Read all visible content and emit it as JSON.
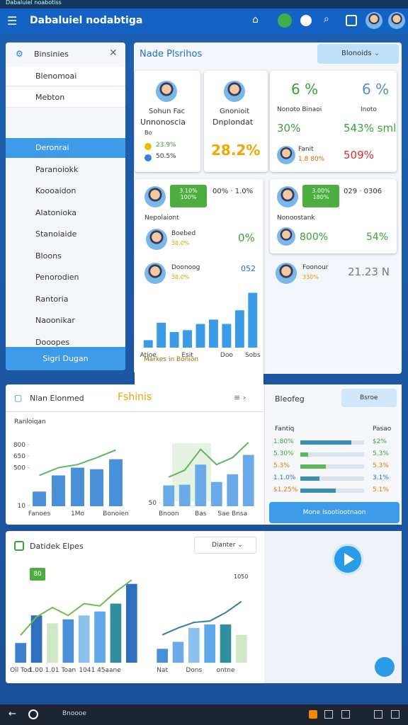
{
  "window_title": "Dabaluiel noabotiss",
  "header": {
    "title": "Dabaluiel nodabtiga"
  },
  "sidebar": {
    "title": "Binsinies",
    "items": [
      "Blenomoai",
      "Mebton",
      "Deronrai",
      "Paranoiokk",
      "Koooaidon",
      "Alatonioka",
      "Stanoiaide",
      "Bloons",
      "Penorodien",
      "Rantoria",
      "Naoonikar",
      "Dooopes"
    ],
    "button": "Sigri Dugan"
  },
  "overview": {
    "title": "Nade Plsrihos",
    "dropdown": "Blonoids",
    "card1": {
      "name": "Sohun Fac",
      "sub": "Unnonoscia",
      "note": "Bo",
      "stat1": "23.9%",
      "stat2": "50.5%"
    },
    "card2": {
      "name": "Gnonioit",
      "sub": "Dnplondat",
      "value": "28.2%"
    },
    "card3": {
      "a": "6 %",
      "b": "6 %",
      "a_label": "Nonoto Binaoi",
      "b_label": "Inoto",
      "c": "30%",
      "d": "543% sml",
      "person": "Fanit",
      "person_value": "1.8 80%",
      "e": "509%"
    },
    "card4": {
      "badge1": "3.10%",
      "badge2": "100%",
      "stat": "00% · 1.0%",
      "name": "Nepolaiont",
      "person": "Boebed",
      "person_value": "38.0%",
      "value": "0%"
    },
    "card5": {
      "badge1": "3.00%",
      "badge2": "180%",
      "stat": "029 · 0306",
      "name": "Nonoostank",
      "value": "800%",
      "value2": "54%"
    },
    "card6": {
      "person": "Doonoog",
      "person_value": "38.0%",
      "stat": "052"
    },
    "card7": {
      "person": "Foonour",
      "person_value": "330%",
      "stat": "21.23 N"
    },
    "footer": "Markes in Bonion"
  },
  "middle": {
    "title": "Nlan Elonmed",
    "tag": "Fshinis",
    "chart_label": "Ranloiqan",
    "side_title": "Bleofeg",
    "side_button": "Bsroe",
    "col1": "Fantiq",
    "col2": "Pasao",
    "rows": [
      {
        "label": "1.80%",
        "value": 80,
        "right": "$2%"
      },
      {
        "label": "5.30%",
        "value": 12,
        "right": "5.3%"
      },
      {
        "label": "5.3%",
        "value": 40,
        "right": "5.3%"
      },
      {
        "label": "1.1.0%",
        "value": 30,
        "right": "3.1%"
      },
      {
        "label": "$1.25%",
        "value": 55,
        "right": "5.1%"
      }
    ],
    "action": "Mone Isootiootnaon"
  },
  "bottom": {
    "title": "Datidek Elpes",
    "dropdown": "Dianter",
    "badge": "80",
    "annotation": "1050"
  },
  "taskbar": {
    "label": "Bnoooe"
  },
  "chart_data": [
    {
      "type": "bar",
      "categories": [
        "Atioe",
        null,
        null,
        "Esit",
        null,
        null,
        "Doo",
        null,
        "Sobs"
      ],
      "values": [
        12,
        40,
        25,
        28,
        38,
        45,
        38,
        60,
        88
      ],
      "color": "#3b9be6",
      "ylim": [
        0,
        100
      ]
    },
    {
      "type": "bar",
      "categories": [
        "Fanoes",
        null,
        "1Mo",
        null,
        "Bonoien"
      ],
      "values": [
        190,
        400,
        500,
        480,
        610
      ],
      "line_values": [
        400,
        500,
        540,
        630,
        730
      ],
      "color": "#4a90d9",
      "line_color": "#5cb85c",
      "ylim": [
        0,
        900
      ],
      "yticks": [
        800,
        650,
        500,
        10
      ]
    },
    {
      "type": "bar",
      "categories": [
        "Bnoon",
        null,
        "Bas",
        null,
        "Sae Bnsa",
        null
      ],
      "values": [
        300,
        310,
        600,
        350,
        460,
        740
      ],
      "line_values": [
        420,
        520,
        820,
        600,
        700,
        920
      ],
      "color": "#6aaae8",
      "line_color": "#5cb85c",
      "ylim": [
        0,
        1000
      ],
      "yticks": [
        50
      ]
    },
    {
      "type": "bar",
      "categories": [
        "Oil Tod",
        null,
        "1.00 1.01 Toan",
        null,
        null,
        "1041 45aane",
        null,
        null
      ],
      "values": [
        25,
        60,
        50,
        55,
        60,
        65,
        75,
        100
      ],
      "line_values": [
        35,
        58,
        70,
        60,
        75,
        72,
        90,
        105
      ],
      "colors": [
        "#3d7fd0",
        "#2f6fbf",
        "#cfe8c8",
        "#4a90d9",
        "#8ec2ee",
        "#5ca8e8",
        "#2f8f9f",
        "#2f6fbf"
      ],
      "line_color": "#6abf4b",
      "ylim": [
        0,
        115
      ]
    },
    {
      "type": "bar",
      "categories": [
        "Nat",
        null,
        "Dons",
        null,
        "ontne",
        null
      ],
      "values": [
        20,
        30,
        50,
        55,
        55,
        40
      ],
      "line_values": [
        40,
        50,
        58,
        60,
        72,
        88
      ],
      "colors": [
        "#4a90d9",
        "#6aaae8",
        "#8ec2ee",
        "#5ca8e8",
        "#2f8f9f",
        "#cfe8c8"
      ],
      "line_color": "#2f7fa0",
      "ylim": [
        0,
        110
      ]
    }
  ]
}
